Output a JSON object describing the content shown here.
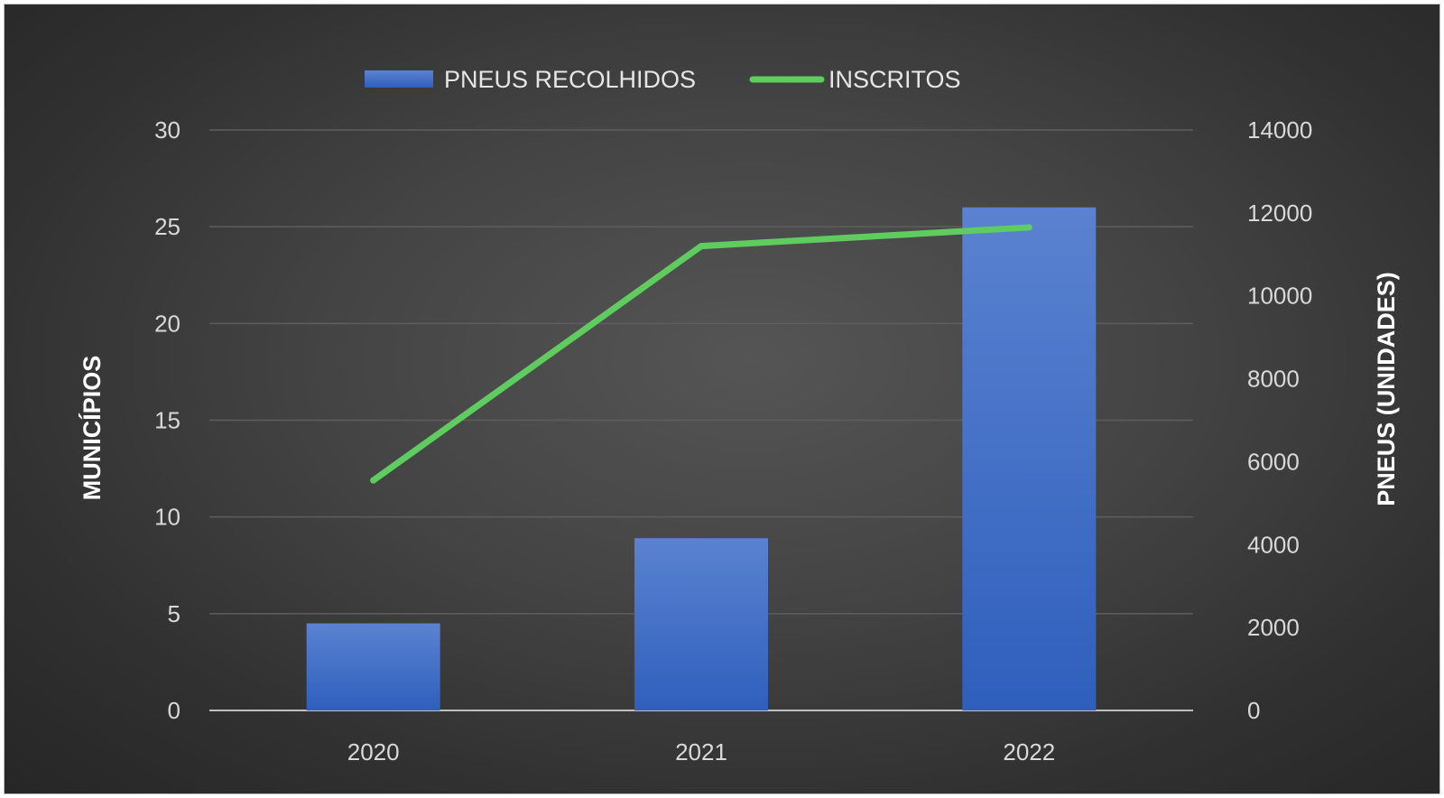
{
  "chart_data": {
    "type": "bar",
    "categories": [
      "2020",
      "2021",
      "2022"
    ],
    "series": [
      {
        "name": "PNEUS RECOLHIDOS",
        "type": "bar",
        "axis": "left",
        "color": "#4472C4",
        "values": [
          4.5,
          8.9,
          26
        ]
      },
      {
        "name": "INSCRITOS",
        "type": "line",
        "axis": "right",
        "color": "#5ECC5E",
        "values": [
          5550,
          11200,
          11650
        ]
      }
    ],
    "ylabel_left": "MUNICÍPIOS",
    "ylabel_right": "PNEUS (UNIDADES)",
    "ylim_left": [
      0,
      30
    ],
    "yticks_left": [
      "0",
      "5",
      "10",
      "15",
      "20",
      "25",
      "30"
    ],
    "ylim_right": [
      0,
      14000
    ],
    "yticks_right": [
      "0",
      "2000",
      "4000",
      "6000",
      "8000",
      "10000",
      "12000",
      "14000"
    ],
    "grid": true,
    "legend": "top-center",
    "background": "#404040"
  }
}
